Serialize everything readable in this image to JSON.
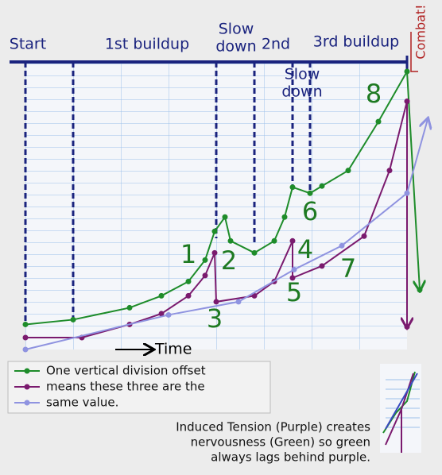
{
  "chart_data": {
    "type": "line",
    "phase_labels": [
      [
        "Start"
      ],
      [
        "1st buildup"
      ],
      [
        "Slow",
        "down"
      ],
      [
        "2nd"
      ],
      [
        "3rd buildup"
      ],
      [
        "Slow",
        "down"
      ],
      [
        "Combat!"
      ]
    ],
    "xlabel": "Time",
    "xlim": [
      0,
      480
    ],
    "ylim": [
      0,
      23.3
    ],
    "series": [
      {
        "name": "One vertical division offset",
        "color": "#1e8c2a",
        "x": [
          0,
          60,
          131,
          171,
          205,
          226,
          238,
          251,
          258,
          288,
          313,
          326,
          336,
          358,
          373,
          406,
          444,
          480,
          496
        ],
        "values": [
          2.1,
          2.5,
          3.5,
          4.5,
          5.7,
          7.5,
          9.9,
          11.1,
          9.1,
          8.1,
          9.1,
          11.1,
          13.6,
          13.1,
          13.7,
          15,
          19.1,
          23.3,
          5
        ]
      },
      {
        "name": "means these three are the",
        "color": "#7a1a6e",
        "x": [
          0,
          71,
          131,
          171,
          205,
          226,
          238,
          240,
          288,
          313,
          336,
          336,
          373,
          426,
          458,
          480,
          480
        ],
        "values": [
          1,
          1,
          2.1,
          3,
          4.5,
          6.2,
          8.1,
          4,
          4.5,
          5.7,
          9.1,
          6,
          7,
          9.5,
          15,
          20.8,
          1.9
        ]
      },
      {
        "name": "same value.",
        "color": "#8f93e0",
        "x": [
          0,
          180,
          268,
          338,
          398,
          480,
          506
        ],
        "values": [
          0,
          2.9,
          4,
          6.7,
          8.7,
          13.1,
          19.3
        ]
      }
    ],
    "annotations": [
      "1",
      "2",
      "3",
      "4",
      "5",
      "6",
      "7",
      "8"
    ],
    "note": [
      "Induced Tension (Purple) creates",
      "nervousness (Green) so green",
      "always lags behind purple."
    ]
  }
}
